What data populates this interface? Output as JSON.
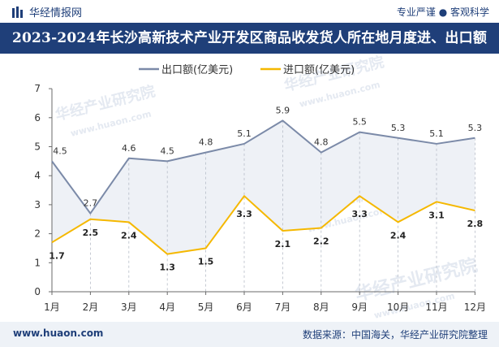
{
  "header": {
    "brand": "华经情报网",
    "tagline": "专业严谨 ● 客观科学",
    "logo_icon": "bar-chart-logo-icon"
  },
  "watermark": {
    "text": "华经产业研究院",
    "url": "www.huaon.com"
  },
  "footer": {
    "website": "www.huaon.com",
    "source": "数据来源：中国海关，华经产业研究院整理"
  },
  "colors": {
    "brand_navy": "#1f3f79",
    "export_line": "#7b8aa8",
    "import_line": "#f5b800",
    "band_fill": "#eef1f6"
  },
  "chart_data": {
    "type": "line",
    "title": "2023-2024年长沙高新技术产业开发区商品收发货人所在地月度进、出口额",
    "categories": [
      "1月",
      "2月",
      "3月",
      "4月",
      "5月",
      "6月",
      "7月",
      "8月",
      "9月",
      "10月",
      "11月",
      "12月"
    ],
    "series": [
      {
        "name": "出口额(亿美元)",
        "values": [
          4.5,
          2.7,
          4.6,
          4.5,
          4.8,
          5.1,
          5.9,
          4.8,
          5.5,
          5.3,
          5.1,
          5.3
        ],
        "labels": [
          "4.5",
          "2.7",
          "4.6",
          "4.5",
          "4.8",
          "5.1",
          "5.9",
          "4.8",
          "5.5",
          "5.3",
          "5.1",
          "5.3"
        ]
      },
      {
        "name": "进口额(亿美元)",
        "values": [
          1.7,
          2.5,
          2.4,
          1.3,
          1.5,
          3.3,
          2.1,
          2.2,
          3.3,
          2.4,
          3.1,
          2.8
        ],
        "labels": [
          "1.7",
          "2.5",
          "2.4",
          "1.3",
          "1.5",
          "3.3",
          "2.1",
          "2.2",
          "3.3",
          "2.4",
          "3.1",
          "2.8"
        ]
      }
    ],
    "yticks": [
      "0",
      "1",
      "2",
      "3",
      "4",
      "5",
      "6",
      "7"
    ],
    "ylim": [
      0,
      7
    ],
    "xlabel": "",
    "ylabel": "",
    "grid": false,
    "band_between_series": true,
    "drop_lines": true,
    "legend_position": "top-center"
  }
}
